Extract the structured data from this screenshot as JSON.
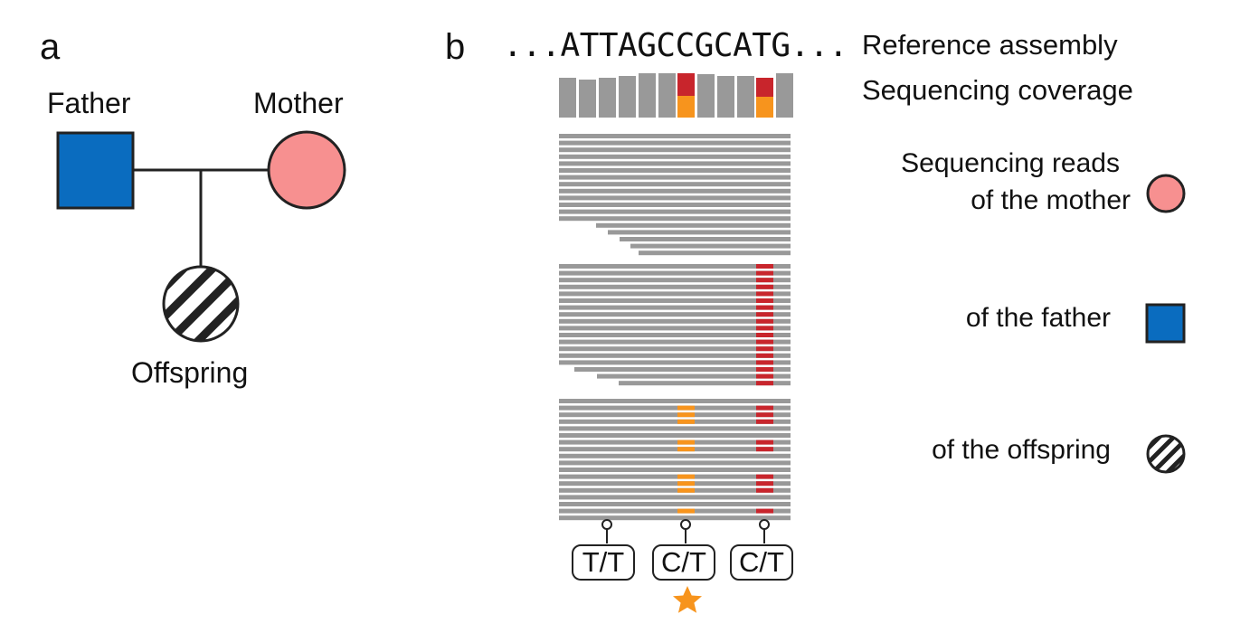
{
  "panel_a": {
    "letter": "a",
    "father_label": "Father",
    "mother_label": "Mother",
    "offspring_label": "Offspring"
  },
  "panel_b": {
    "letter": "b",
    "reference_sequence": "...ATTAGCCGCATG...",
    "genotypes": [
      "T/T",
      "C/T",
      "C/T"
    ],
    "star_marks_de_novo": "genotype_index_1"
  },
  "legend": {
    "reference": "Reference assembly",
    "coverage": "Sequencing coverage",
    "reads_line1": "Sequencing reads",
    "reads_line2": "of the mother",
    "father": "of the father",
    "offspring": "of the offspring"
  },
  "colors": {
    "father_blue": "#0a6cbf",
    "mother_pink": "#f79090",
    "read_gray": "#999999",
    "variant_red": "#c8252c",
    "variant_orange": "#f7941d"
  }
}
